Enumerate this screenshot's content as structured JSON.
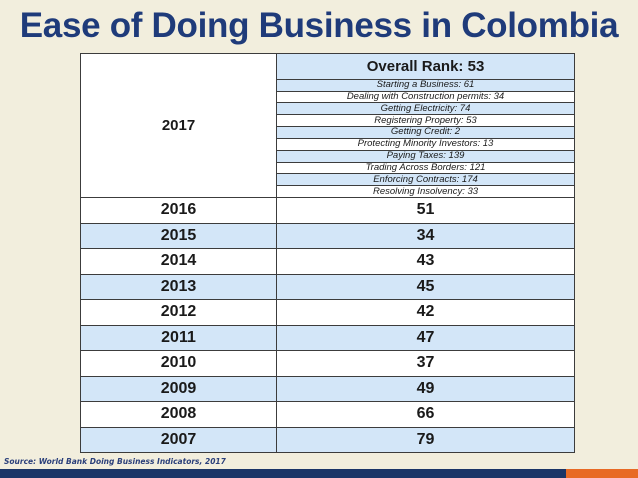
{
  "title": "Ease of Doing Business in Colombia",
  "current_year": {
    "year": "2017",
    "overall": "Overall Rank: 53",
    "indicators": [
      "Starting a Business: 61",
      "Dealing with Construction permits: 34",
      "Getting Electricity: 74",
      "Registering Property: 53",
      "Getting Credit: 2",
      "Protecting Minority Investors: 13",
      "Paying Taxes: 139",
      "Trading Across Borders: 121",
      "Enforcing Contracts: 174",
      "Resolving Insolvency: 33"
    ]
  },
  "history": [
    {
      "year": "2016",
      "rank": "51"
    },
    {
      "year": "2015",
      "rank": "34"
    },
    {
      "year": "2014",
      "rank": "43"
    },
    {
      "year": "2013",
      "rank": "45"
    },
    {
      "year": "2012",
      "rank": "42"
    },
    {
      "year": "2011",
      "rank": "47"
    },
    {
      "year": "2010",
      "rank": "37"
    },
    {
      "year": "2009",
      "rank": "49"
    },
    {
      "year": "2008",
      "rank": "66"
    },
    {
      "year": "2007",
      "rank": "79"
    }
  ],
  "source": "Source: World Bank Doing Business Indicators, 2017",
  "colors": {
    "background": "#f2eedd",
    "title": "#1f3b7a",
    "row_blue": "#d3e6f8",
    "bar_navy": "#1b3567",
    "bar_orange": "#e86a25"
  }
}
